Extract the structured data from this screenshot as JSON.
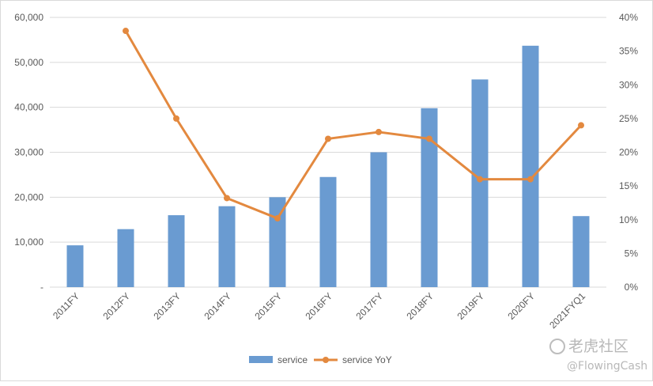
{
  "chart_data": {
    "type": "bar",
    "categories": [
      "2011FY",
      "2012FY",
      "2013FY",
      "2014FY",
      "2015FY",
      "2016FY",
      "2017FY",
      "2018FY",
      "2019FY",
      "2020FY",
      "2021FYQ1"
    ],
    "series": [
      {
        "name": "service",
        "type": "bar",
        "axis": "left",
        "color": "#6a9bd1",
        "values": [
          9300,
          12900,
          16000,
          18000,
          20000,
          24500,
          30000,
          39800,
          46200,
          53700,
          15800
        ]
      },
      {
        "name": "service YoY",
        "type": "line",
        "axis": "right",
        "color": "#e3893f",
        "values": [
          null,
          0.38,
          0.25,
          0.132,
          0.102,
          0.22,
          0.23,
          0.22,
          0.16,
          0.16,
          0.24
        ]
      }
    ],
    "y_left": {
      "min": 0,
      "max": 60000,
      "ticks": [
        "-",
        "10,000",
        "20,000",
        "30,000",
        "40,000",
        "50,000",
        "60,000"
      ]
    },
    "y_right": {
      "min": 0,
      "max": 0.4,
      "ticks": [
        "0%",
        "5%",
        "10%",
        "15%",
        "20%",
        "25%",
        "30%",
        "35%",
        "40%"
      ]
    },
    "grid": true,
    "legend": {
      "position": "bottom",
      "items": [
        "service",
        "service YoY"
      ]
    }
  },
  "watermark": {
    "brand": "老虎社区",
    "handle": "@FlowingCash",
    "icon": "tiger-logo-icon"
  }
}
